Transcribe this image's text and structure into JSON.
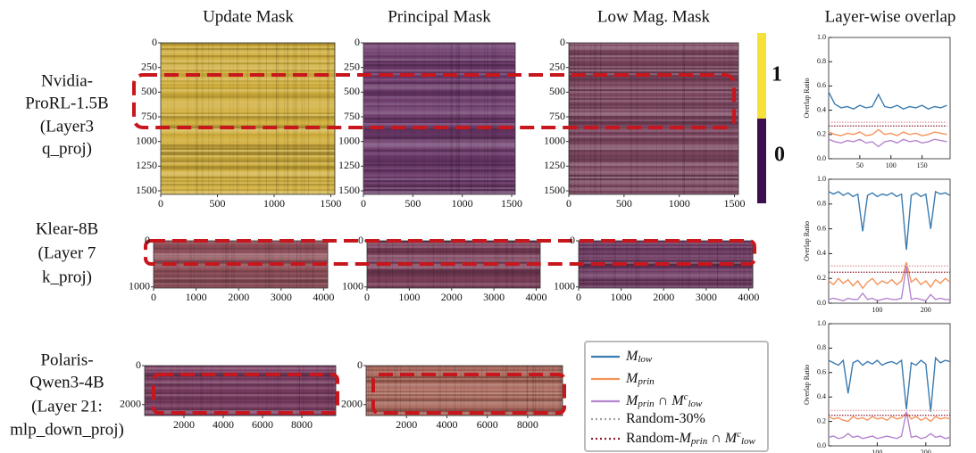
{
  "columns": [
    "Update Mask",
    "Principal Mask",
    "Low Mag. Mask",
    "Layer-wise overlap"
  ],
  "rows": [
    [
      "Nvidia-",
      "ProRL-1.5B",
      "(Layer3",
      "q_proj)"
    ],
    [
      "Klear-8B",
      "(Layer 7",
      "k_proj)"
    ],
    [
      "Polaris-",
      "Qwen3-4B",
      "(Layer 21:",
      "mlp_down_proj)"
    ]
  ],
  "colorbar": {
    "ticks": [
      1,
      0
    ],
    "colors": [
      "#f5e13a",
      "#3d0e4e"
    ]
  },
  "legend": [
    {
      "color": "#3a7bb0",
      "linestyle": "solid",
      "text": [
        {
          "t": "M"
        },
        {
          "t": "low",
          "pos": "sub"
        }
      ]
    },
    {
      "color": "#f4935a",
      "linestyle": "solid",
      "text": [
        {
          "t": "M"
        },
        {
          "t": "prin",
          "pos": "sub"
        }
      ]
    },
    {
      "color": "#b585cf",
      "linestyle": "solid",
      "text": [
        {
          "t": "M"
        },
        {
          "t": "prin",
          "pos": "sub"
        },
        {
          "t": " ∩ M"
        },
        {
          "t": "c",
          "pos": "sup"
        },
        {
          "t": "low",
          "pos": "sub"
        }
      ]
    },
    {
      "color": "#a0a0a0",
      "linestyle": "dotted",
      "text": [
        {
          "t": "Random-30%"
        }
      ]
    },
    {
      "color": "#8b2035",
      "linestyle": "dotted",
      "text": [
        {
          "t": "Random-"
        },
        {
          "t": "M"
        },
        {
          "t": "prin",
          "pos": "sub"
        },
        {
          "t": " ∩ M"
        },
        {
          "t": "c",
          "pos": "sup"
        },
        {
          "t": "low",
          "pos": "sub"
        }
      ]
    }
  ],
  "chart_data": [
    {
      "type": "heatmap",
      "color": "#d2b03e",
      "xlim": [
        0,
        1536
      ],
      "ylim": [
        0,
        1536
      ],
      "xticks": [
        0,
        500,
        1000,
        1500
      ],
      "yticks": [
        0,
        250,
        500,
        750,
        1000,
        1250,
        1500
      ]
    },
    {
      "type": "heatmap",
      "color": "#6a3868",
      "xlim": [
        0,
        1536
      ],
      "ylim": [
        0,
        1536
      ],
      "xticks": [
        0,
        500,
        1000,
        1500
      ],
      "yticks": [
        0,
        250,
        500,
        750,
        1000,
        1250,
        1500
      ]
    },
    {
      "type": "heatmap",
      "color": "#7c4660",
      "xlim": [
        0,
        1536
      ],
      "ylim": [
        0,
        1536
      ],
      "xticks": [
        0,
        500,
        1000,
        1500
      ],
      "yticks": [
        0,
        250,
        500,
        750,
        1000,
        1250,
        1500
      ]
    },
    {
      "type": "heatmap",
      "color": "#8d4e58",
      "xlim": [
        0,
        4096
      ],
      "ylim": [
        0,
        1024
      ],
      "xticks": [
        0,
        1000,
        2000,
        3000,
        4000
      ],
      "yticks": [
        0,
        1000
      ]
    },
    {
      "type": "heatmap",
      "color": "#7a3e5a",
      "xlim": [
        0,
        4096
      ],
      "ylim": [
        0,
        1024
      ],
      "xticks": [
        0,
        1000,
        2000,
        3000,
        4000
      ],
      "yticks": [
        0,
        1000
      ]
    },
    {
      "type": "heatmap",
      "color": "#6e3a62",
      "xlim": [
        0,
        4096
      ],
      "ylim": [
        0,
        1024
      ],
      "xticks": [
        0,
        1000,
        2000,
        3000,
        4000
      ],
      "yticks": [
        0,
        1000
      ]
    },
    {
      "type": "heatmap",
      "color": "#7a3e62",
      "xlim": [
        0,
        9728
      ],
      "ylim": [
        0,
        2560
      ],
      "xticks": [
        2000,
        4000,
        6000,
        8000
      ],
      "yticks": [
        0,
        2000
      ]
    },
    {
      "type": "heatmap",
      "color": "#a8665a",
      "xlim": [
        0,
        9728
      ],
      "ylim": [
        0,
        2560
      ],
      "xticks": [
        2000,
        4000,
        6000,
        8000
      ],
      "yticks": [
        0,
        2000
      ]
    },
    {
      "type": "line",
      "ylabel": "Overlap Ratio",
      "xlim": [
        0,
        195
      ],
      "xticks": [
        50,
        100,
        150
      ],
      "ylim": [
        0,
        1
      ],
      "yticks": [
        {
          "value": 0,
          "label": "0.0"
        },
        {
          "value": 0.2,
          "label": "0.2"
        },
        {
          "value": 0.4,
          "label": "0.4"
        },
        {
          "value": 0.6,
          "label": "0.6"
        },
        {
          "value": 0.8,
          "label": "0.8"
        },
        {
          "value": 1,
          "label": "1.0"
        }
      ],
      "x": [
        0,
        10,
        20,
        30,
        40,
        50,
        60,
        70,
        80,
        90,
        100,
        110,
        120,
        130,
        140,
        150,
        160,
        170,
        180,
        190
      ],
      "series": [
        {
          "color": "#3a7bb0",
          "linestyle": "solid",
          "values": [
            0.55,
            0.45,
            0.42,
            0.43,
            0.41,
            0.44,
            0.42,
            0.43,
            0.53,
            0.43,
            0.42,
            0.44,
            0.41,
            0.43,
            0.42,
            0.44,
            0.41,
            0.43,
            0.42,
            0.44
          ]
        },
        {
          "color": "#f4935a",
          "linestyle": "solid",
          "values": [
            0.22,
            0.2,
            0.19,
            0.21,
            0.2,
            0.22,
            0.19,
            0.2,
            0.24,
            0.2,
            0.21,
            0.19,
            0.22,
            0.2,
            0.21,
            0.19,
            0.2,
            0.22,
            0.21,
            0.2
          ]
        },
        {
          "color": "#b585cf",
          "linestyle": "solid",
          "values": [
            0.16,
            0.14,
            0.13,
            0.15,
            0.14,
            0.16,
            0.13,
            0.14,
            0.1,
            0.14,
            0.15,
            0.13,
            0.16,
            0.14,
            0.15,
            0.13,
            0.14,
            0.16,
            0.15,
            0.14
          ]
        },
        {
          "color": "#e0a0a0",
          "linestyle": "dotted",
          "values": [
            0.3,
            0.3,
            0.3,
            0.3,
            0.3,
            0.3,
            0.3,
            0.3,
            0.3,
            0.3,
            0.3,
            0.3,
            0.3,
            0.3,
            0.3,
            0.3,
            0.3,
            0.3,
            0.3,
            0.3
          ]
        },
        {
          "color": "#8b2035",
          "linestyle": "dotted",
          "values": [
            0.27,
            0.27,
            0.27,
            0.27,
            0.27,
            0.27,
            0.27,
            0.27,
            0.27,
            0.27,
            0.27,
            0.27,
            0.27,
            0.27,
            0.27,
            0.27,
            0.27,
            0.27,
            0.27,
            0.27
          ]
        }
      ]
    },
    {
      "type": "line",
      "ylabel": "Overlap Ratio",
      "xlim": [
        0,
        250
      ],
      "xticks": [
        100,
        200
      ],
      "ylim": [
        0,
        1
      ],
      "yticks": [
        {
          "value": 0,
          "label": "0.0"
        },
        {
          "value": 0.2,
          "label": "0.2"
        },
        {
          "value": 0.4,
          "label": "0.4"
        },
        {
          "value": 0.6,
          "label": "0.6"
        },
        {
          "value": 0.8,
          "label": "0.8"
        },
        {
          "value": 1,
          "label": "1.0"
        }
      ],
      "x": [
        0,
        10,
        20,
        30,
        40,
        50,
        60,
        70,
        80,
        90,
        100,
        110,
        120,
        130,
        140,
        150,
        160,
        170,
        180,
        190,
        200,
        210,
        220,
        230,
        240,
        250
      ],
      "series": [
        {
          "color": "#3a7bb0",
          "linestyle": "solid",
          "values": [
            0.9,
            0.88,
            0.9,
            0.87,
            0.89,
            0.86,
            0.88,
            0.58,
            0.87,
            0.89,
            0.86,
            0.88,
            0.87,
            0.89,
            0.86,
            0.88,
            0.43,
            0.87,
            0.89,
            0.86,
            0.88,
            0.6,
            0.9,
            0.88,
            0.89,
            0.87
          ]
        },
        {
          "color": "#f4935a",
          "linestyle": "solid",
          "values": [
            0.18,
            0.15,
            0.2,
            0.16,
            0.19,
            0.14,
            0.18,
            0.12,
            0.17,
            0.2,
            0.15,
            0.18,
            0.16,
            0.19,
            0.15,
            0.18,
            0.33,
            0.17,
            0.2,
            0.15,
            0.18,
            0.13,
            0.19,
            0.16,
            0.2,
            0.17
          ]
        },
        {
          "color": "#b585cf",
          "linestyle": "solid",
          "values": [
            0.03,
            0.04,
            0.03,
            0.02,
            0.04,
            0.03,
            0.03,
            0.08,
            0.03,
            0.04,
            0.02,
            0.03,
            0.04,
            0.03,
            0.03,
            0.04,
            0.3,
            0.03,
            0.04,
            0.03,
            0.02,
            0.07,
            0.03,
            0.04,
            0.03,
            0.03
          ]
        },
        {
          "color": "#e0a0a0",
          "linestyle": "dotted",
          "values": [
            0.3,
            0.3,
            0.3,
            0.3,
            0.3,
            0.3,
            0.3,
            0.3,
            0.3,
            0.3,
            0.3,
            0.3,
            0.3,
            0.3,
            0.3,
            0.3,
            0.3,
            0.3,
            0.3,
            0.3,
            0.3,
            0.3,
            0.3,
            0.3,
            0.3,
            0.3
          ]
        },
        {
          "color": "#8b2035",
          "linestyle": "dotted",
          "values": [
            0.25,
            0.25,
            0.25,
            0.25,
            0.25,
            0.25,
            0.25,
            0.25,
            0.25,
            0.25,
            0.25,
            0.25,
            0.25,
            0.25,
            0.25,
            0.25,
            0.25,
            0.25,
            0.25,
            0.25,
            0.25,
            0.25,
            0.25,
            0.25,
            0.25,
            0.25
          ]
        }
      ]
    },
    {
      "type": "line",
      "ylabel": "Overlap Ratio",
      "xlim": [
        0,
        250
      ],
      "xticks": [
        100,
        200
      ],
      "ylim": [
        0,
        1
      ],
      "yticks": [
        {
          "value": 0,
          "label": "0.0"
        },
        {
          "value": 0.2,
          "label": "0.2"
        },
        {
          "value": 0.4,
          "label": "0.4"
        },
        {
          "value": 0.6,
          "label": "0.6"
        },
        {
          "value": 0.8,
          "label": "0.8"
        },
        {
          "value": 1,
          "label": "1.0"
        }
      ],
      "x": [
        0,
        10,
        20,
        30,
        40,
        50,
        60,
        70,
        80,
        90,
        100,
        110,
        120,
        130,
        140,
        150,
        160,
        170,
        180,
        190,
        200,
        210,
        220,
        230,
        240,
        250
      ],
      "series": [
        {
          "color": "#3a7bb0",
          "linestyle": "solid",
          "values": [
            0.7,
            0.68,
            0.66,
            0.7,
            0.43,
            0.68,
            0.7,
            0.66,
            0.69,
            0.67,
            0.7,
            0.66,
            0.68,
            0.69,
            0.67,
            0.7,
            0.3,
            0.68,
            0.66,
            0.7,
            0.67,
            0.28,
            0.72,
            0.68,
            0.7,
            0.69
          ]
        },
        {
          "color": "#f4935a",
          "linestyle": "solid",
          "values": [
            0.24,
            0.22,
            0.23,
            0.21,
            0.2,
            0.24,
            0.22,
            0.23,
            0.21,
            0.24,
            0.22,
            0.23,
            0.21,
            0.24,
            0.22,
            0.23,
            0.27,
            0.22,
            0.24,
            0.21,
            0.23,
            0.2,
            0.24,
            0.22,
            0.23,
            0.22
          ]
        },
        {
          "color": "#b585cf",
          "linestyle": "solid",
          "values": [
            0.07,
            0.08,
            0.06,
            0.07,
            0.1,
            0.07,
            0.08,
            0.06,
            0.07,
            0.08,
            0.06,
            0.07,
            0.08,
            0.07,
            0.06,
            0.08,
            0.28,
            0.07,
            0.08,
            0.06,
            0.07,
            0.1,
            0.07,
            0.08,
            0.06,
            0.07
          ]
        },
        {
          "color": "#e0a0a0",
          "linestyle": "dotted",
          "values": [
            0.29,
            0.29,
            0.29,
            0.29,
            0.29,
            0.29,
            0.29,
            0.29,
            0.29,
            0.29,
            0.29,
            0.29,
            0.29,
            0.29,
            0.29,
            0.29,
            0.29,
            0.29,
            0.29,
            0.29,
            0.29,
            0.29,
            0.29,
            0.29,
            0.29,
            0.29
          ]
        },
        {
          "color": "#8b2035",
          "linestyle": "dotted",
          "values": [
            0.25,
            0.25,
            0.25,
            0.25,
            0.25,
            0.25,
            0.25,
            0.25,
            0.25,
            0.25,
            0.25,
            0.25,
            0.25,
            0.25,
            0.25,
            0.25,
            0.25,
            0.25,
            0.25,
            0.25,
            0.25,
            0.25,
            0.25,
            0.25,
            0.25,
            0.25
          ]
        }
      ]
    }
  ]
}
